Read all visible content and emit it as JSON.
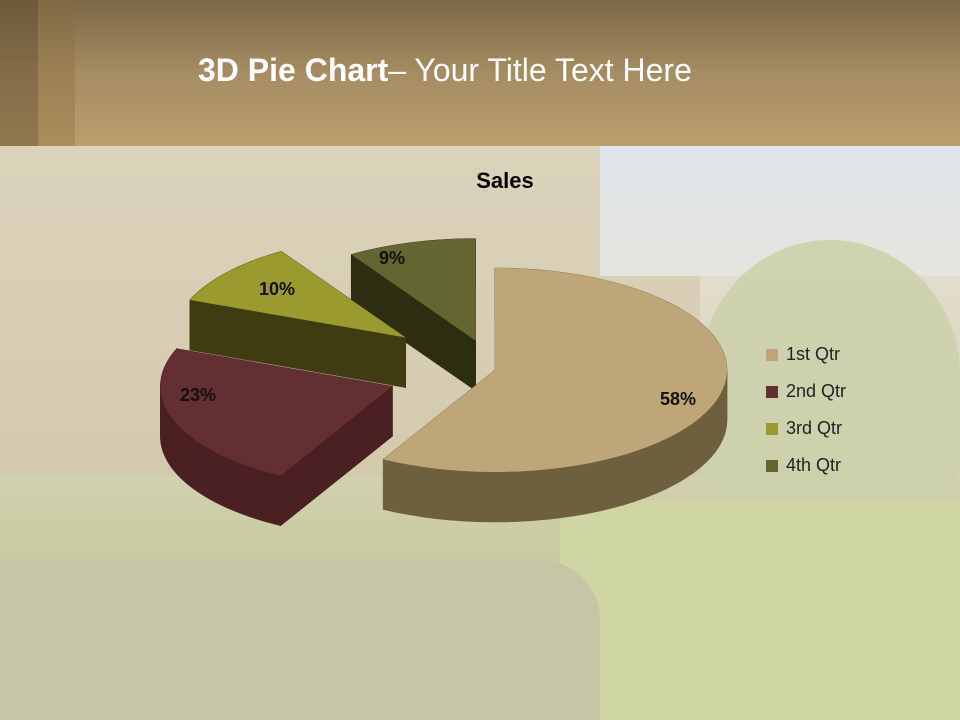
{
  "slide": {
    "title_bold": "3D Pie Chart",
    "title_rest": "– Your Title Text Here"
  },
  "chart_data": {
    "type": "pie",
    "subtype": "3d-exploded",
    "title": "Sales",
    "categories": [
      "1st Qtr",
      "2nd Qtr",
      "3rd Qtr",
      "4th Qtr"
    ],
    "values": [
      58,
      23,
      10,
      9
    ],
    "labels": [
      "58%",
      "23%",
      "10%",
      "9%"
    ],
    "colors": [
      "#bfa678",
      "#642f32",
      "#9a9a2e",
      "#636630"
    ],
    "side_colors": [
      "#6e5f3e",
      "#4a2022",
      "#3e3c10",
      "#2d2d12"
    ],
    "legend_position": "right"
  }
}
